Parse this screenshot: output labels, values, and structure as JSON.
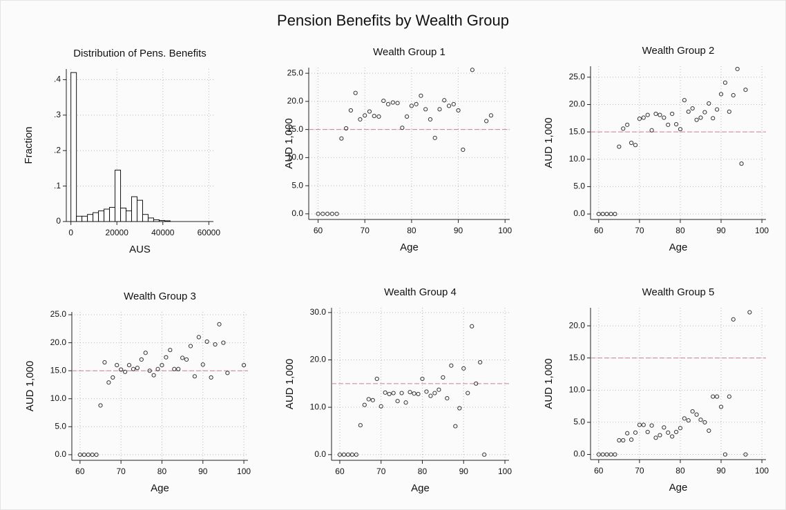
{
  "title": "Pension Benefits by Wealth Group",
  "chart_data": [
    {
      "type": "histogram",
      "title": "Distribution of Pens. Benefits",
      "x_label": "AUS",
      "y_label": "Fraction",
      "bins": [
        0,
        2400,
        4800,
        7200,
        9600,
        12000,
        14400,
        16800,
        19200,
        21600,
        24000,
        26400,
        28800,
        31200,
        33600,
        36000,
        38400,
        40800,
        43200
      ],
      "values": [
        0.42,
        0.015,
        0.015,
        0.02,
        0.025,
        0.03,
        0.035,
        0.04,
        0.145,
        0.038,
        0.03,
        0.07,
        0.06,
        0.02,
        0.01,
        0.005,
        0.003,
        0.002
      ],
      "color": "#ffffff",
      "xlim": [
        -2000,
        62000
      ],
      "ylim": [
        0,
        0.43
      ],
      "xticks": [
        0,
        20000,
        40000,
        60000
      ],
      "yticks": [
        0,
        {
          "value": 0.1,
          "label": ".1"
        },
        {
          "value": 0.2,
          "label": ".2"
        },
        {
          "value": 0.3,
          "label": ".3"
        },
        {
          "value": 0.4,
          "label": ".4"
        }
      ],
      "grid": true
    },
    {
      "type": "scatter",
      "title": "Wealth Group 1",
      "x_label": "Age",
      "y_label": "AUD 1,000",
      "x": [
        60,
        61,
        62,
        63,
        64,
        65,
        66,
        67,
        68,
        69,
        70,
        71,
        72,
        73,
        74,
        75,
        76,
        77,
        78,
        79,
        80,
        81,
        82,
        83,
        84,
        85,
        86,
        87,
        88,
        89,
        90,
        91,
        93,
        96,
        97
      ],
      "values": [
        0,
        0,
        0,
        0,
        0,
        13.4,
        15.2,
        18.4,
        21.5,
        16.8,
        17.5,
        18.2,
        17.4,
        17.3,
        20.1,
        19.5,
        19.8,
        19.7,
        15.3,
        17.3,
        19.2,
        19.5,
        21.0,
        18.6,
        16.8,
        13.5,
        18.6,
        20.2,
        19.2,
        19.5,
        18.4,
        11.4,
        25.6,
        16.5,
        17.5
      ],
      "color": "#333333",
      "reference_line": 15,
      "reference_color": "#c97f8f",
      "xlim": [
        58,
        101
      ],
      "ylim": [
        -1,
        26
      ],
      "xticks": [
        60,
        70,
        80,
        90,
        100
      ],
      "yticks": [
        {
          "value": 0,
          "label": "0.0"
        },
        {
          "value": 5,
          "label": "5.0"
        },
        {
          "value": 10,
          "label": "10.0"
        },
        {
          "value": 15,
          "label": "15.0"
        },
        {
          "value": 20,
          "label": "20.0"
        },
        {
          "value": 25,
          "label": "25.0"
        }
      ],
      "grid": true
    },
    {
      "type": "scatter",
      "title": "Wealth Group 2",
      "x_label": "Age",
      "y_label": "AUD 1,000",
      "x": [
        60,
        61,
        62,
        63,
        64,
        65,
        66,
        67,
        68,
        69,
        70,
        71,
        72,
        73,
        74,
        75,
        76,
        77,
        78,
        79,
        80,
        81,
        82,
        83,
        84,
        85,
        86,
        87,
        88,
        89,
        90,
        91,
        92,
        93,
        94,
        95,
        96
      ],
      "values": [
        0,
        0,
        0,
        0,
        0,
        12.3,
        15.6,
        16.3,
        13.0,
        12.6,
        17.4,
        17.6,
        18.1,
        15.3,
        18.3,
        18.1,
        17.6,
        16.3,
        18.3,
        16.4,
        15.5,
        20.8,
        18.7,
        19.3,
        17.2,
        17.6,
        18.6,
        20.2,
        17.5,
        19.1,
        21.9,
        24.0,
        18.7,
        21.7,
        26.5,
        9.2,
        22.7
      ],
      "color": "#333333",
      "reference_line": 15,
      "reference_color": "#c97f8f",
      "xlim": [
        58,
        101
      ],
      "ylim": [
        -1,
        27
      ],
      "xticks": [
        60,
        70,
        80,
        90,
        100
      ],
      "yticks": [
        {
          "value": 0,
          "label": "0.0"
        },
        {
          "value": 5,
          "label": "5.0"
        },
        {
          "value": 10,
          "label": "10.0"
        },
        {
          "value": 15,
          "label": "15.0"
        },
        {
          "value": 20,
          "label": "20.0"
        },
        {
          "value": 25,
          "label": "25.0"
        }
      ],
      "grid": true
    },
    {
      "type": "scatter",
      "title": "Wealth Group 3",
      "x_label": "Age",
      "y_label": "AUD 1,000",
      "x": [
        60,
        61,
        62,
        63,
        64,
        65,
        66,
        67,
        68,
        69,
        70,
        71,
        72,
        73,
        74,
        75,
        76,
        77,
        78,
        79,
        80,
        81,
        82,
        83,
        84,
        85,
        86,
        87,
        88,
        89,
        90,
        91,
        92,
        93,
        94,
        95,
        96,
        100
      ],
      "values": [
        0,
        0,
        0,
        0,
        0,
        8.8,
        16.5,
        12.9,
        13.8,
        16.0,
        15.2,
        14.8,
        16.0,
        15.3,
        15.5,
        17.0,
        18.2,
        15.0,
        14.2,
        15.3,
        16.0,
        17.4,
        18.7,
        15.3,
        15.3,
        17.3,
        17.0,
        19.4,
        14.0,
        21.0,
        16.1,
        20.2,
        13.8,
        19.7,
        23.3,
        20.0,
        14.6,
        16.0
      ],
      "color": "#333333",
      "reference_line": 15,
      "reference_color": "#c97f8f",
      "xlim": [
        58,
        101
      ],
      "ylim": [
        -1,
        25.5
      ],
      "xticks": [
        60,
        70,
        80,
        90,
        100
      ],
      "yticks": [
        {
          "value": 0,
          "label": "0.0"
        },
        {
          "value": 5,
          "label": "5.0"
        },
        {
          "value": 10,
          "label": "10.0"
        },
        {
          "value": 15,
          "label": "15.0"
        },
        {
          "value": 20,
          "label": "20.0"
        },
        {
          "value": 25,
          "label": "25.0"
        }
      ],
      "grid": true
    },
    {
      "type": "scatter",
      "title": "Wealth Group 4",
      "x_label": "Age",
      "y_label": "AUD 1,000",
      "x": [
        60,
        61,
        62,
        63,
        64,
        65,
        66,
        67,
        68,
        69,
        70,
        71,
        72,
        73,
        74,
        75,
        76,
        77,
        78,
        79,
        80,
        81,
        82,
        83,
        84,
        85,
        86,
        87,
        88,
        89,
        90,
        91,
        92,
        93,
        94,
        95
      ],
      "values": [
        0,
        0,
        0,
        0,
        0,
        6.2,
        10.5,
        11.7,
        11.5,
        16.0,
        10.2,
        13.1,
        12.8,
        13.0,
        11.3,
        13.0,
        11.0,
        13.2,
        12.9,
        12.8,
        16.0,
        13.3,
        12.4,
        13.0,
        13.7,
        16.3,
        11.9,
        18.8,
        6.0,
        9.8,
        18.2,
        13.0,
        27.1,
        15.0,
        19.5,
        0
      ],
      "color": "#333333",
      "reference_line": 15,
      "reference_color": "#c97f8f",
      "xlim": [
        58,
        101
      ],
      "ylim": [
        -1.2,
        31
      ],
      "xticks": [
        60,
        70,
        80,
        90,
        100
      ],
      "yticks": [
        {
          "value": 0,
          "label": "0.0"
        },
        {
          "value": 10,
          "label": "10.0"
        },
        {
          "value": 20,
          "label": "20.0"
        },
        {
          "value": 30,
          "label": "30.0"
        }
      ],
      "grid": true
    },
    {
      "type": "scatter",
      "title": "Wealth Group 5",
      "x_label": "Age",
      "y_label": "AUD 1,000",
      "x": [
        60,
        61,
        62,
        63,
        64,
        65,
        66,
        67,
        68,
        69,
        70,
        71,
        72,
        73,
        74,
        75,
        76,
        77,
        78,
        79,
        80,
        81,
        82,
        83,
        84,
        85,
        86,
        87,
        88,
        89,
        90,
        91,
        92,
        93,
        96,
        97
      ],
      "values": [
        0,
        0,
        0,
        0,
        0,
        2.2,
        2.2,
        3.3,
        2.3,
        3.4,
        4.6,
        4.6,
        3.5,
        4.5,
        2.6,
        3.0,
        4.2,
        3.4,
        2.8,
        3.5,
        4.1,
        5.6,
        5.3,
        6.7,
        6.2,
        5.4,
        5.0,
        3.7,
        9.0,
        9.0,
        7.4,
        0,
        9.0,
        21.0,
        0,
        22.1
      ],
      "color": "#333333",
      "reference_line": 15,
      "reference_color": "#c97f8f",
      "xlim": [
        58,
        101
      ],
      "ylim": [
        -0.8,
        22.8
      ],
      "xticks": [
        60,
        70,
        80,
        90,
        100
      ],
      "yticks": [
        {
          "value": 0,
          "label": "0.0"
        },
        {
          "value": 5,
          "label": "5.0"
        },
        {
          "value": 10,
          "label": "10.0"
        },
        {
          "value": 15,
          "label": "15.0"
        },
        {
          "value": 20,
          "label": "20.0"
        }
      ],
      "grid": true
    }
  ]
}
